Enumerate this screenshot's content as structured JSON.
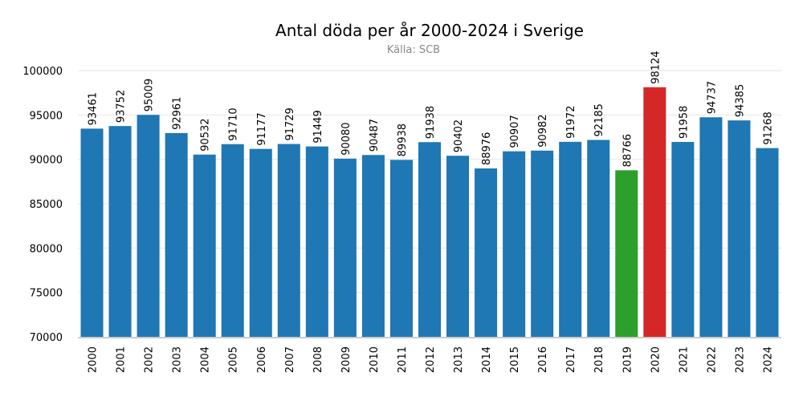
{
  "chart_data": {
    "type": "bar",
    "title": "Antal döda per år 2000-2024 i Sverige",
    "subtitle": "Källa: SCB",
    "xlabel": "",
    "ylabel": "",
    "categories": [
      "2000",
      "2001",
      "2002",
      "2003",
      "2004",
      "2005",
      "2006",
      "2007",
      "2008",
      "2009",
      "2010",
      "2011",
      "2012",
      "2013",
      "2014",
      "2015",
      "2016",
      "2017",
      "2018",
      "2019",
      "2020",
      "2021",
      "2022",
      "2023",
      "2024"
    ],
    "values": [
      93461,
      93752,
      95009,
      92961,
      90532,
      91710,
      91177,
      91729,
      91449,
      90080,
      90487,
      89938,
      91938,
      90402,
      88976,
      90907,
      90982,
      91972,
      92185,
      88766,
      98124,
      91958,
      94737,
      94385,
      91268
    ],
    "ylim": [
      70000,
      100000
    ],
    "yticks": [
      70000,
      75000,
      80000,
      85000,
      90000,
      95000,
      100000
    ],
    "grid": true,
    "colors": {
      "default": "#1f77b4",
      "highlight_low": "#2ca02c",
      "highlight_high": "#d62728",
      "grid": "#eeeeee",
      "axis": "#cccccc"
    },
    "highlights": {
      "2019": "highlight_low",
      "2020": "highlight_high"
    }
  }
}
